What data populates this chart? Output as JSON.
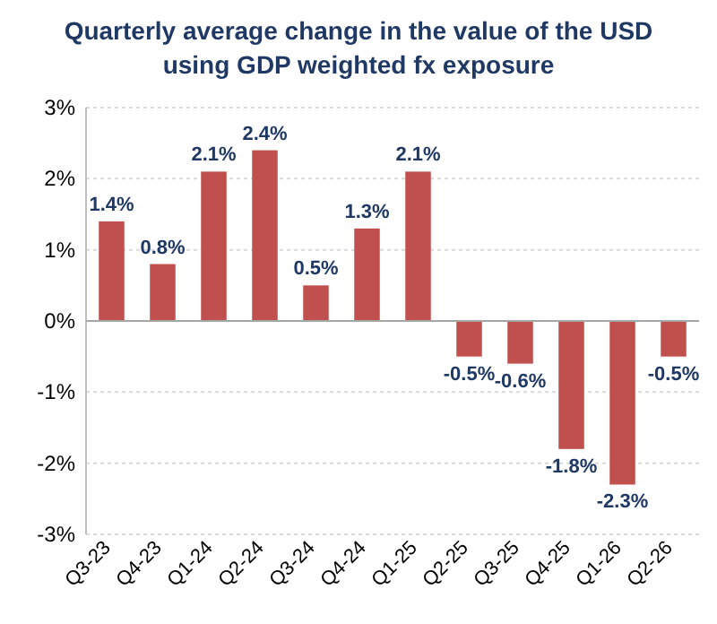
{
  "chart_data": {
    "type": "bar",
    "title": "Quarterly average change in the value of the USD using GDP weighted fx exposure",
    "categories": [
      "Q3-23",
      "Q4-23",
      "Q1-24",
      "Q2-24",
      "Q3-24",
      "Q4-24",
      "Q1-25",
      "Q2-25",
      "Q3-25",
      "Q4-25",
      "Q1-26",
      "Q2-26"
    ],
    "values": [
      1.4,
      0.8,
      2.1,
      2.4,
      0.5,
      1.3,
      2.1,
      -0.5,
      -0.6,
      -1.8,
      -2.3,
      -0.5
    ],
    "value_labels": [
      "1.4%",
      "0.8%",
      "2.1%",
      "2.4%",
      "0.5%",
      "1.3%",
      "2.1%",
      "-0.5%",
      "-0.6%",
      "-1.8%",
      "-2.3%",
      "-0.5%"
    ],
    "color": "#c0504d",
    "ylim": [
      -3,
      3
    ],
    "yticks": [
      {
        "value": -3,
        "label": "-3%"
      },
      {
        "value": -2,
        "label": "-2%"
      },
      {
        "value": -1,
        "label": "-1%"
      },
      {
        "value": 0,
        "label": "0%"
      },
      {
        "value": 1,
        "label": "1%"
      },
      {
        "value": 2,
        "label": "2%"
      },
      {
        "value": 3,
        "label": "3%"
      }
    ],
    "grid": "y"
  }
}
